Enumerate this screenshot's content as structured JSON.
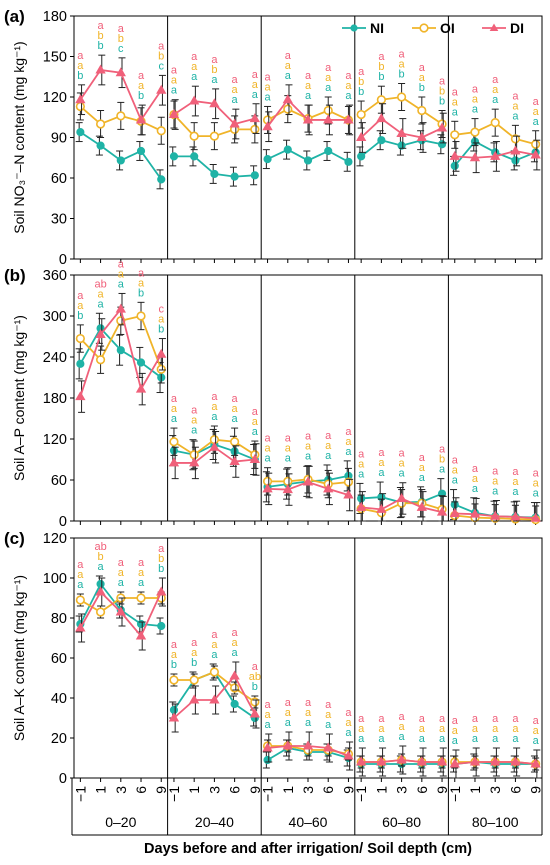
{
  "colors": {
    "NI": "#1fb3a6",
    "OI": "#f0b429",
    "DI": "#f0607a"
  },
  "legend": {
    "items": [
      {
        "key": "NI",
        "label": "NI"
      },
      {
        "key": "OI",
        "label": "OI"
      },
      {
        "key": "DI",
        "label": "DI"
      }
    ]
  },
  "x_axis": {
    "days": [
      "−1",
      "1",
      "3",
      "6",
      "9"
    ],
    "depths": [
      "0–20",
      "20–40",
      "40–60",
      "60–80",
      "80–100"
    ],
    "label": "Days before and after irrigation/ Soil depth (cm)"
  },
  "chart_data": [
    {
      "type": "line",
      "panel_label": "(a)",
      "ylabel": "Soil NO₃⁻–N content (mg kg⁻¹)",
      "ylim": [
        0,
        180
      ],
      "yticks": [
        0,
        30,
        60,
        90,
        120,
        150,
        180
      ],
      "legend_position": "top-right",
      "series": [
        {
          "name": "NI",
          "groups": [
            [
              94,
              84,
              73,
              80,
              59
            ],
            [
              76,
              76,
              63,
              61,
              62
            ],
            [
              74,
              81,
              73,
              80,
              72
            ],
            [
              76,
              88,
              84,
              88,
              85
            ],
            [
              69,
              87,
              79,
              73,
              79
            ]
          ]
        },
        {
          "name": "OI",
          "groups": [
            [
              113,
              100,
              106,
              102,
              95
            ],
            [
              107,
              91,
              91,
              96,
              96
            ],
            [
              103,
              111,
              104,
              110,
              103
            ],
            [
              107,
              118,
              120,
              110,
              100
            ],
            [
              92,
              94,
              101,
              89,
              85
            ]
          ]
        },
        {
          "name": "DI",
          "groups": [
            [
              118,
              140,
              138,
              103,
              125
            ],
            [
              107,
              117,
              115,
              100,
              104
            ],
            [
              98,
              118,
              103,
              103,
              103
            ],
            [
              90,
              104,
              93,
              90,
              97
            ],
            [
              76,
              75,
              76,
              80,
              77
            ]
          ]
        }
      ],
      "errors": {
        "NI": 7,
        "OI": 10,
        "DI": 11
      },
      "letters": [
        [
          [
            "b",
            "b",
            "c",
            "b",
            "c"
          ],
          [
            "a",
            "a",
            "a",
            "a",
            "a"
          ],
          [
            "a",
            "a",
            "a",
            "a",
            "a"
          ],
          [
            "b",
            "b",
            "b",
            "b",
            "b"
          ],
          [
            "a",
            "a",
            "a",
            "a",
            "a"
          ]
        ],
        [
          [
            "a",
            "b",
            "b",
            "a",
            "b"
          ],
          [
            "a",
            "a",
            "b",
            "a",
            "a"
          ],
          [
            "a",
            "a",
            "a",
            "a",
            "a"
          ],
          [
            "b",
            "b",
            "a",
            "a",
            "b"
          ],
          [
            "a",
            "a",
            "a",
            "a",
            "a"
          ]
        ],
        [
          [
            "a",
            "a",
            "a",
            "a",
            "a"
          ],
          [
            "a",
            "a",
            "a",
            "a",
            "a"
          ],
          [
            "a",
            "a",
            "a",
            "a",
            "a"
          ],
          [
            "a",
            "a",
            "a",
            "a",
            "a"
          ],
          [
            "a",
            "a",
            "a",
            "a",
            "a"
          ]
        ]
      ]
    },
    {
      "type": "line",
      "panel_label": "(b)",
      "ylabel": "Soil A–P content (mg kg⁻¹)",
      "ylim": [
        0,
        360
      ],
      "yticks": [
        0,
        60,
        120,
        180,
        240,
        300,
        360
      ],
      "series": [
        {
          "name": "NI",
          "groups": [
            [
              230,
              282,
              250,
              232,
              210
            ],
            [
              103,
              97,
              112,
              102,
              90
            ],
            [
              50,
              54,
              58,
              60,
              66
            ],
            [
              33,
              35,
              27,
              28,
              40
            ],
            [
              24,
              12,
              7,
              6,
              5
            ]
          ]
        },
        {
          "name": "OI",
          "groups": [
            [
              267,
              236,
              293,
              300,
              222
            ],
            [
              116,
              97,
              119,
              116,
              97
            ],
            [
              58,
              58,
              61,
              54,
              57
            ],
            [
              18,
              12,
              26,
              26,
              17
            ],
            [
              8,
              5,
              4,
              3,
              2
            ]
          ]
        },
        {
          "name": "DI",
          "groups": [
            [
              182,
              273,
              310,
              193,
              244
            ],
            [
              85,
              85,
              108,
              87,
              90
            ],
            [
              47,
              46,
              57,
              47,
              38
            ],
            [
              20,
              17,
              33,
              20,
              13
            ],
            [
              11,
              10,
              7,
              6,
              4
            ]
          ]
        }
      ],
      "errors": {
        "NI": 22,
        "OI": 20,
        "DI": 23
      },
      "letters": [
        [
          [
            "b",
            "a",
            "a",
            "b",
            "b"
          ],
          [
            "a",
            "a",
            "a",
            "a",
            "a"
          ],
          [
            "a",
            "a",
            "a",
            "a",
            "a"
          ],
          [
            "a",
            "a",
            "a",
            "a",
            "a"
          ],
          [
            "a",
            "a",
            "a",
            "a",
            "a"
          ]
        ],
        [
          [
            "a",
            "a",
            "a",
            "a",
            "a"
          ],
          [
            "a",
            "a",
            "a",
            "a",
            "a"
          ],
          [
            "a",
            "a",
            "a",
            "a",
            "a"
          ],
          [
            "a",
            "a",
            "a",
            "a",
            "b"
          ],
          [
            "a",
            "a",
            "a",
            "a",
            "a"
          ]
        ],
        [
          [
            "a",
            "ab",
            "a",
            "a",
            "c"
          ],
          [
            "a",
            "a",
            "a",
            "a",
            "a"
          ],
          [
            "a",
            "a",
            "a",
            "a",
            "a"
          ],
          [
            "a",
            "a",
            "a",
            "a",
            "a"
          ],
          [
            "a",
            "a",
            "a",
            "a",
            "a"
          ]
        ]
      ]
    },
    {
      "type": "line",
      "panel_label": "(c)",
      "ylabel": "Soil A–K content (mg kg⁻¹)",
      "ylim": [
        0,
        120
      ],
      "yticks": [
        0,
        20,
        40,
        60,
        80,
        100,
        120
      ],
      "series": [
        {
          "name": "NI",
          "groups": [
            [
              77,
              97,
              84,
              77,
              76
            ],
            [
              34,
              49,
              53,
              37,
              30
            ],
            [
              9,
              15,
              13,
              13,
              10
            ],
            [
              7,
              7,
              7,
              7,
              7
            ],
            [
              7,
              8,
              7,
              7,
              7
            ]
          ]
        },
        {
          "name": "OI",
          "groups": [
            [
              89,
              83,
              90,
              90,
              90
            ],
            [
              49,
              49,
              53,
              45,
              38
            ],
            [
              16,
              16,
              14,
              14,
              12
            ],
            [
              8,
              8,
              9,
              8,
              8
            ],
            [
              8,
              8,
              8,
              8,
              7
            ]
          ]
        },
        {
          "name": "DI",
          "groups": [
            [
              75,
              93,
              83,
              71,
              93
            ],
            [
              30,
              39,
              39,
              51,
              32
            ],
            [
              15,
              16,
              16,
              15,
              11
            ],
            [
              8,
              8,
              9,
              8,
              8
            ],
            [
              7,
              8,
              8,
              8,
              7
            ]
          ]
        }
      ],
      "errors": {
        "NI": 4,
        "OI": 3,
        "DI": 7
      },
      "letters": [
        [
          [
            "a",
            "a",
            "a",
            "a",
            "b"
          ],
          [
            "b",
            "b",
            "a",
            "a",
            "b"
          ],
          [
            "a",
            "a",
            "a",
            "a",
            "a"
          ],
          [
            "a",
            "a",
            "a",
            "a",
            "a"
          ],
          [
            "a",
            "a",
            "a",
            "a",
            "a"
          ]
        ],
        [
          [
            "a",
            "b",
            "a",
            "a",
            "b"
          ],
          [
            "a",
            "a",
            "a",
            "a",
            "ab"
          ],
          [
            "a",
            "a",
            "a",
            "a",
            "a"
          ],
          [
            "a",
            "a",
            "a",
            "a",
            "a"
          ],
          [
            "a",
            "a",
            "a",
            "a",
            "a"
          ]
        ],
        [
          [
            "a",
            "ab",
            "a",
            "a",
            "a"
          ],
          [
            "a",
            "a",
            "a",
            "a",
            "a"
          ],
          [
            "a",
            "a",
            "a",
            "a",
            "a"
          ],
          [
            "a",
            "a",
            "a",
            "a",
            "a"
          ],
          [
            "a",
            "a",
            "a",
            "a",
            "a"
          ]
        ]
      ]
    }
  ]
}
